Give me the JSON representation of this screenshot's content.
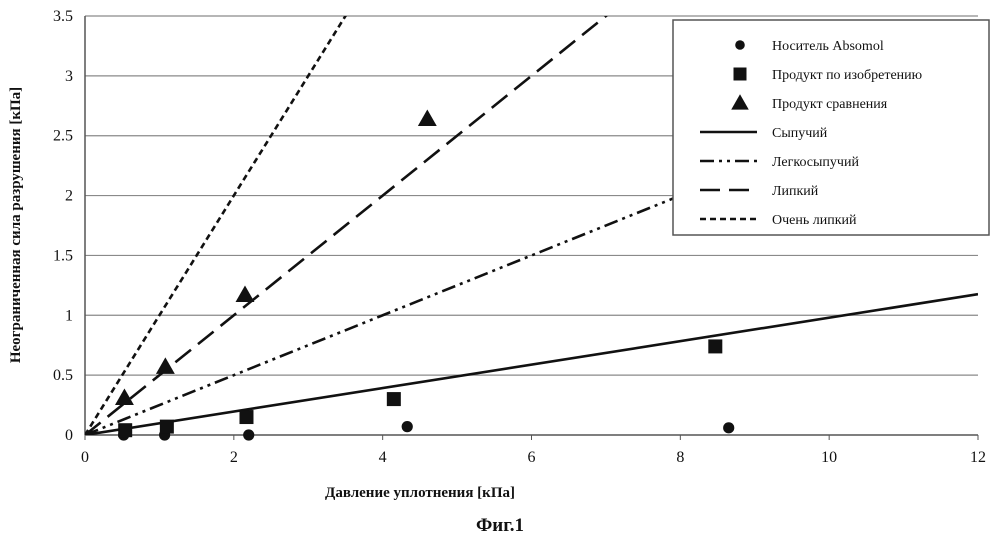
{
  "chart_data": {
    "type": "scatter",
    "xlabel": "Давление уплотнения [кПа]",
    "ylabel": "Неограниченная сила разрушения [кПа]",
    "caption": "Фиг.1",
    "xlim": [
      0,
      12
    ],
    "ylim": [
      0,
      3.5
    ],
    "xticks": [
      "0",
      "2",
      "4",
      "6",
      "8",
      "10",
      "12"
    ],
    "yticks": [
      "0",
      "0.5",
      "1",
      "1.5",
      "2",
      "2.5",
      "3",
      "3.5"
    ],
    "grid": true,
    "legend_position": "top-right",
    "series": [
      {
        "name": "Носитель Absomol",
        "marker": "circle",
        "color": "#111111",
        "points": [
          [
            0.52,
            0.0
          ],
          [
            1.07,
            0.0
          ],
          [
            2.2,
            0.0
          ],
          [
            4.33,
            0.07
          ],
          [
            8.65,
            0.06
          ]
        ]
      },
      {
        "name": "Продукт по изобретению",
        "marker": "square",
        "color": "#111111",
        "points": [
          [
            0.54,
            0.04
          ],
          [
            1.1,
            0.07
          ],
          [
            2.17,
            0.15
          ],
          [
            4.15,
            0.3
          ],
          [
            8.47,
            0.74
          ]
        ]
      },
      {
        "name": "Продукт сравнения",
        "marker": "triangle",
        "color": "#111111",
        "points": [
          [
            0.53,
            0.31
          ],
          [
            1.08,
            0.57
          ],
          [
            2.15,
            1.17
          ],
          [
            4.6,
            2.64
          ]
        ]
      }
    ],
    "lines": [
      {
        "name": "Сыпучий",
        "style": "solid",
        "slope": 0.098
      },
      {
        "name": "Легкосыпучий",
        "style": "dashdot",
        "slope": 0.25
      },
      {
        "name": "Липкий",
        "style": "longdash",
        "slope": 0.5
      },
      {
        "name": "Очень липкий",
        "style": "shortdash",
        "slope": 1.0
      }
    ]
  }
}
